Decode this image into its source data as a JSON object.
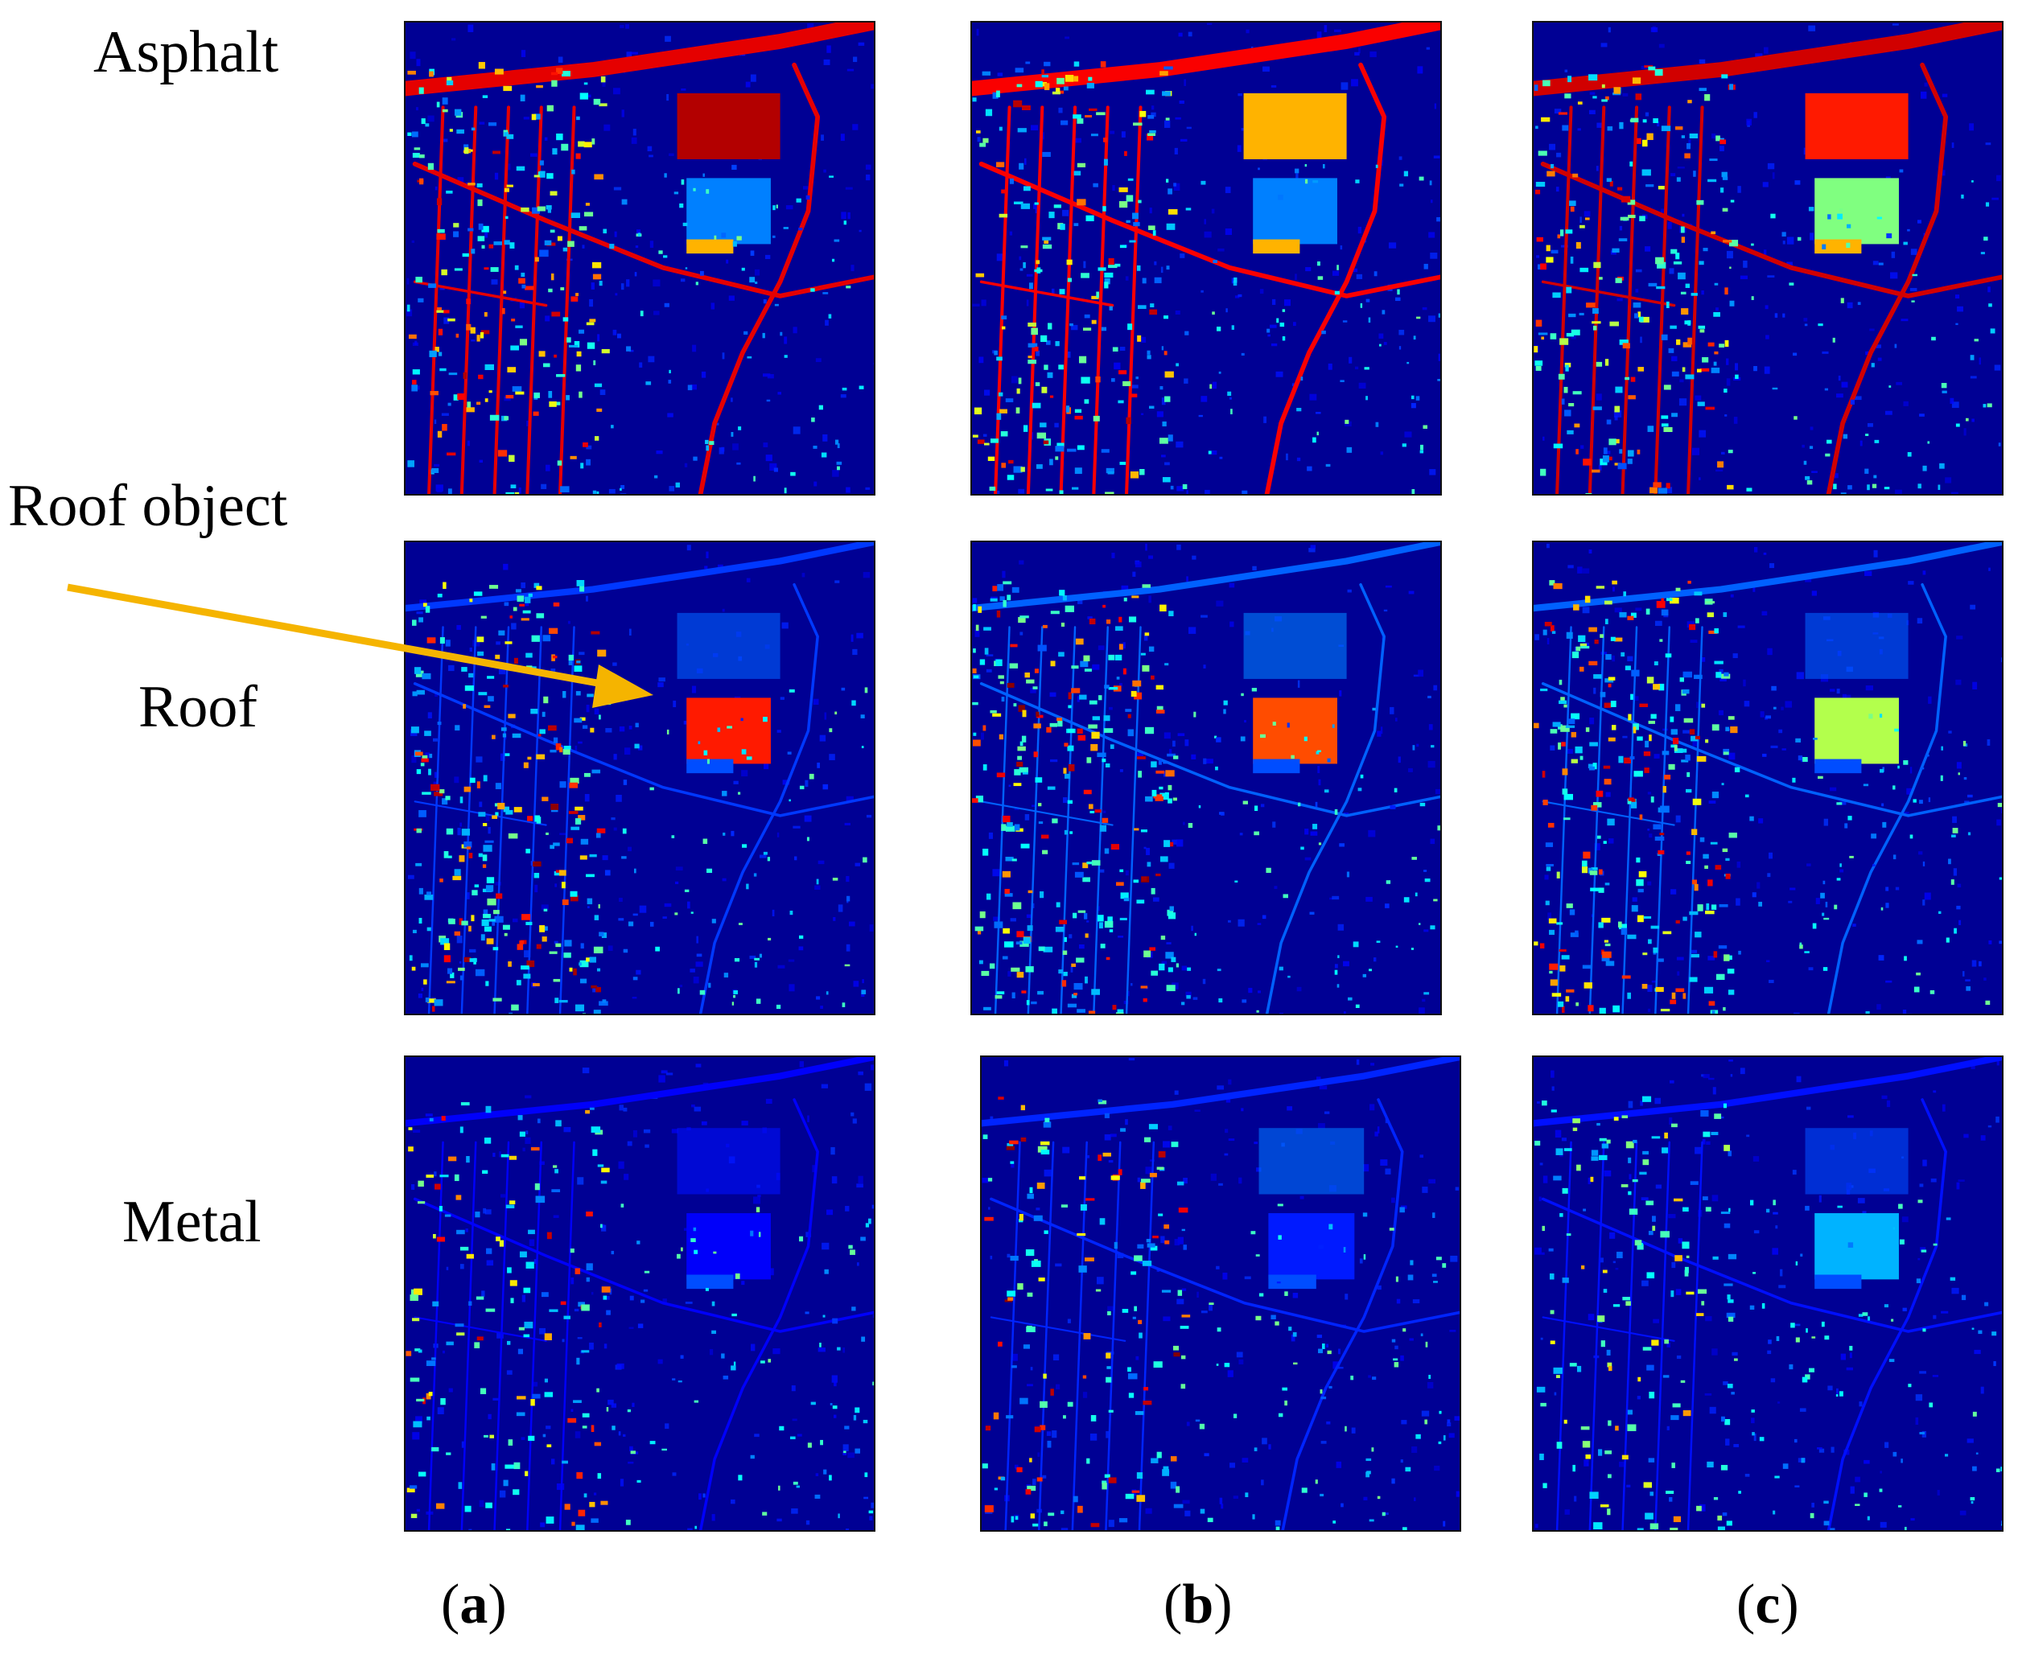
{
  "row_labels": {
    "asphalt": "Asphalt",
    "roof_object": "Roof object",
    "roof": "Roof",
    "metal": "Metal"
  },
  "column_captions": [
    {
      "open": "(",
      "letter": "a",
      "close": ")"
    },
    {
      "open": "(",
      "letter": "b",
      "close": ")"
    },
    {
      "open": "(",
      "letter": "c",
      "close": ")"
    }
  ],
  "colors": {
    "background_map": "#00008a",
    "arrow": "#f5b400",
    "jet_low": "#00008f",
    "jet_mid": "#00ffff",
    "jet_high": "#ff0000"
  },
  "panels": [
    {
      "row": "asphalt",
      "column": "a",
      "depiction": "asphalt abundance map, method a"
    },
    {
      "row": "asphalt",
      "column": "b",
      "depiction": "asphalt abundance map, method b"
    },
    {
      "row": "asphalt",
      "column": "c",
      "depiction": "asphalt abundance map, method c"
    },
    {
      "row": "roof",
      "column": "a",
      "depiction": "roof abundance map, method a"
    },
    {
      "row": "roof",
      "column": "b",
      "depiction": "roof abundance map, method b"
    },
    {
      "row": "roof",
      "column": "c",
      "depiction": "roof abundance map, method c"
    },
    {
      "row": "metal",
      "column": "a",
      "depiction": "metal abundance map, method a"
    },
    {
      "row": "metal",
      "column": "b",
      "depiction": "metal abundance map, method b"
    },
    {
      "row": "metal",
      "column": "c",
      "depiction": "metal abundance map, method c"
    }
  ]
}
